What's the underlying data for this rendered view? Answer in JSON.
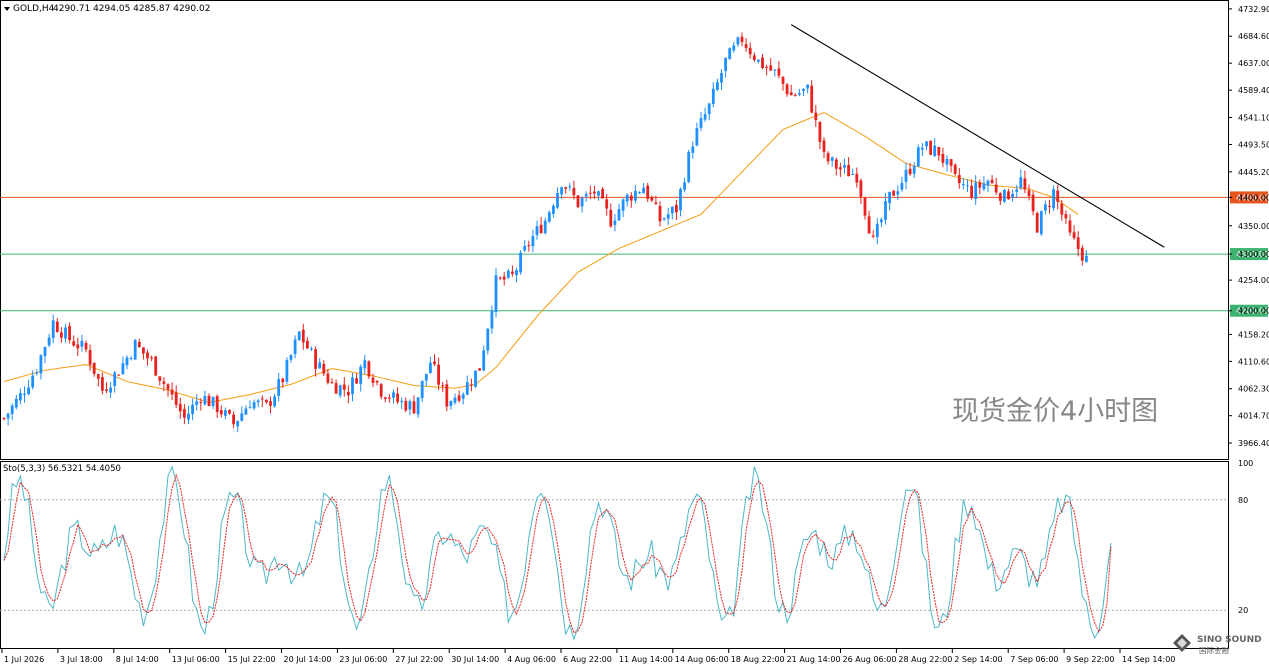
{
  "header": {
    "symbol_label": "GOLD,H4",
    "ohlc": "4290.71 4294.05 4285.87 4290.02",
    "menu_arrow": "triangle-down-icon"
  },
  "watermark": "现货金价4小时图",
  "logo": {
    "text": "SINO SOUND",
    "subtext": "国际金融"
  },
  "stoch_header": "Sto(5,3,3) 56.5321 54.4050",
  "colors": {
    "bull": "#1e90ff",
    "bear": "#e8221e",
    "ma": "#f39c12",
    "resistance": "#e8541e",
    "support": "#3cb371",
    "trendline": "#000000",
    "stoch_main": "#4db8c7",
    "stoch_signal": "#e8221e"
  },
  "chart_data": {
    "type": "candlestick",
    "symbol": "GOLD",
    "timeframe": "H4",
    "price_axis_ticks": [
      "4732.90",
      "4684.60",
      "4637.00",
      "4589.40",
      "4541.10",
      "4493.50",
      "4445.20",
      "4400.00",
      "4350.00",
      "4300.00",
      "4254.00",
      "4200.00",
      "4158.20",
      "4110.60",
      "4062.30",
      "4014.70",
      "3966.40"
    ],
    "ylim": [
      3940,
      4745
    ],
    "time_axis_labels": [
      "1 Jul 2026",
      "3 Jul 18:00",
      "8 Jul 14:00",
      "13 Jul 06:00",
      "15 Jul 22:00",
      "20 Jul 14:00",
      "23 Jul 06:00",
      "27 Jul 22:00",
      "30 Jul 14:00",
      "4 Aug 06:00",
      "6 Aug 22:00",
      "11 Aug 14:00",
      "14 Aug 06:00",
      "18 Aug 22:00",
      "21 Aug 14:00",
      "26 Aug 06:00",
      "28 Aug 22:00",
      "2 Sep 14:00",
      "7 Sep 06:00",
      "9 Sep 22:00",
      "14 Sep 14:00"
    ],
    "horizontal_levels": [
      {
        "value": 4400.0,
        "label": "4400.00",
        "role": "resistance"
      },
      {
        "value": 4300.0,
        "label": "4300.00",
        "role": "support"
      },
      {
        "value": 4200.0,
        "label": "4200.00",
        "role": "support"
      }
    ],
    "current_price_label": "4290.02",
    "trendline": {
      "from_price": 4705,
      "to_price": 4312
    },
    "close_path": [
      [
        0,
        4010
      ],
      [
        4,
        4050
      ],
      [
        8,
        4100
      ],
      [
        12,
        4180
      ],
      [
        16,
        4150
      ],
      [
        20,
        4130
      ],
      [
        24,
        4060
      ],
      [
        28,
        4095
      ],
      [
        32,
        4140
      ],
      [
        36,
        4110
      ],
      [
        40,
        4060
      ],
      [
        44,
        4010
      ],
      [
        48,
        4050
      ],
      [
        52,
        4030
      ],
      [
        56,
        4000
      ],
      [
        60,
        4040
      ],
      [
        64,
        4030
      ],
      [
        68,
        4080
      ],
      [
        72,
        4160
      ],
      [
        76,
        4110
      ],
      [
        80,
        4070
      ],
      [
        84,
        4060
      ],
      [
        88,
        4110
      ],
      [
        92,
        4060
      ],
      [
        96,
        4040
      ],
      [
        100,
        4030
      ],
      [
        104,
        4110
      ],
      [
        108,
        4040
      ],
      [
        112,
        4060
      ],
      [
        116,
        4100
      ],
      [
        120,
        4250
      ],
      [
        124,
        4260
      ],
      [
        128,
        4320
      ],
      [
        132,
        4360
      ],
      [
        136,
        4430
      ],
      [
        140,
        4390
      ],
      [
        144,
        4410
      ],
      [
        148,
        4360
      ],
      [
        152,
        4400
      ],
      [
        156,
        4420
      ],
      [
        160,
        4360
      ],
      [
        164,
        4380
      ],
      [
        168,
        4500
      ],
      [
        172,
        4560
      ],
      [
        176,
        4640
      ],
      [
        180,
        4680
      ],
      [
        184,
        4640
      ],
      [
        188,
        4620
      ],
      [
        192,
        4580
      ],
      [
        196,
        4590
      ],
      [
        200,
        4470
      ],
      [
        204,
        4450
      ],
      [
        208,
        4440
      ],
      [
        212,
        4320
      ],
      [
        216,
        4400
      ],
      [
        220,
        4440
      ],
      [
        224,
        4490
      ],
      [
        228,
        4480
      ],
      [
        232,
        4430
      ],
      [
        236,
        4410
      ],
      [
        240,
        4430
      ],
      [
        244,
        4400
      ],
      [
        248,
        4430
      ],
      [
        252,
        4350
      ],
      [
        256,
        4410
      ],
      [
        260,
        4330
      ],
      [
        264,
        4290
      ]
    ],
    "ma_path": [
      [
        0,
        4075
      ],
      [
        10,
        4095
      ],
      [
        20,
        4105
      ],
      [
        30,
        4075
      ],
      [
        40,
        4060
      ],
      [
        50,
        4038
      ],
      [
        60,
        4052
      ],
      [
        70,
        4070
      ],
      [
        80,
        4098
      ],
      [
        90,
        4085
      ],
      [
        100,
        4068
      ],
      [
        110,
        4063
      ],
      [
        115,
        4070
      ],
      [
        120,
        4100
      ],
      [
        130,
        4190
      ],
      [
        140,
        4268
      ],
      [
        150,
        4310
      ],
      [
        160,
        4340
      ],
      [
        170,
        4370
      ],
      [
        180,
        4445
      ],
      [
        190,
        4520
      ],
      [
        200,
        4550
      ],
      [
        210,
        4508
      ],
      [
        220,
        4460
      ],
      [
        230,
        4440
      ],
      [
        240,
        4422
      ],
      [
        250,
        4415
      ],
      [
        256,
        4400
      ],
      [
        262,
        4370
      ]
    ],
    "stochastic": {
      "period": "5,3,3",
      "main": 56.5321,
      "signal": 54.405,
      "levels": [
        80,
        20
      ],
      "ylim": [
        0,
        100
      ],
      "axis_labels": [
        "100",
        "80",
        "20"
      ]
    }
  }
}
